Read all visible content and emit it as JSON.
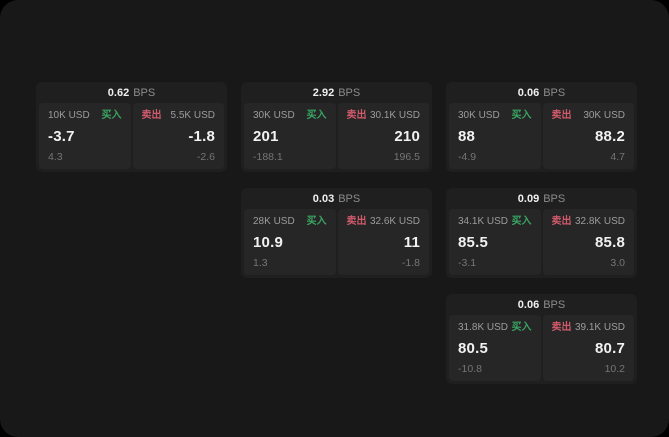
{
  "labels": {
    "bps_unit": "BPS",
    "buy": "买入",
    "sell": "卖出"
  },
  "colors": {
    "window_bg": "#181818",
    "card_bg": "#1f1f1f",
    "panel_bg": "#262626",
    "text_primary": "#f2f2f2",
    "text_secondary": "#9c9c9c",
    "text_muted": "#757575",
    "buy_green": "#3aa563",
    "sell_red": "#cf5a6b"
  },
  "cards": [
    {
      "bps": "0.62",
      "col": 1,
      "row": 1,
      "buy": {
        "size": "10K USD",
        "value": "-3.7",
        "sub": "4.3"
      },
      "sell": {
        "size": "5.5K USD",
        "value": "-1.8",
        "sub": "-2.6"
      }
    },
    {
      "bps": "2.92",
      "col": 2,
      "row": 1,
      "buy": {
        "size": "30K USD",
        "value": "201",
        "sub": "-188.1"
      },
      "sell": {
        "size": "30.1K USD",
        "value": "210",
        "sub": "196.5"
      }
    },
    {
      "bps": "0.06",
      "col": 3,
      "row": 1,
      "buy": {
        "size": "30K USD",
        "value": "88",
        "sub": "-4.9"
      },
      "sell": {
        "size": "30K USD",
        "value": "88.2",
        "sub": "4.7"
      }
    },
    {
      "bps": "0.03",
      "col": 2,
      "row": 2,
      "buy": {
        "size": "28K USD",
        "value": "10.9",
        "sub": "1.3"
      },
      "sell": {
        "size": "32.6K USD",
        "value": "11",
        "sub": "-1.8"
      }
    },
    {
      "bps": "0.09",
      "col": 3,
      "row": 2,
      "buy": {
        "size": "34.1K USD",
        "value": "85.5",
        "sub": "-3.1"
      },
      "sell": {
        "size": "32.8K USD",
        "value": "85.8",
        "sub": "3.0"
      }
    },
    {
      "bps": "0.06",
      "col": 3,
      "row": 3,
      "buy": {
        "size": "31.8K USD",
        "value": "80.5",
        "sub": "-10.8"
      },
      "sell": {
        "size": "39.1K USD",
        "value": "80.7",
        "sub": "10.2"
      }
    }
  ]
}
